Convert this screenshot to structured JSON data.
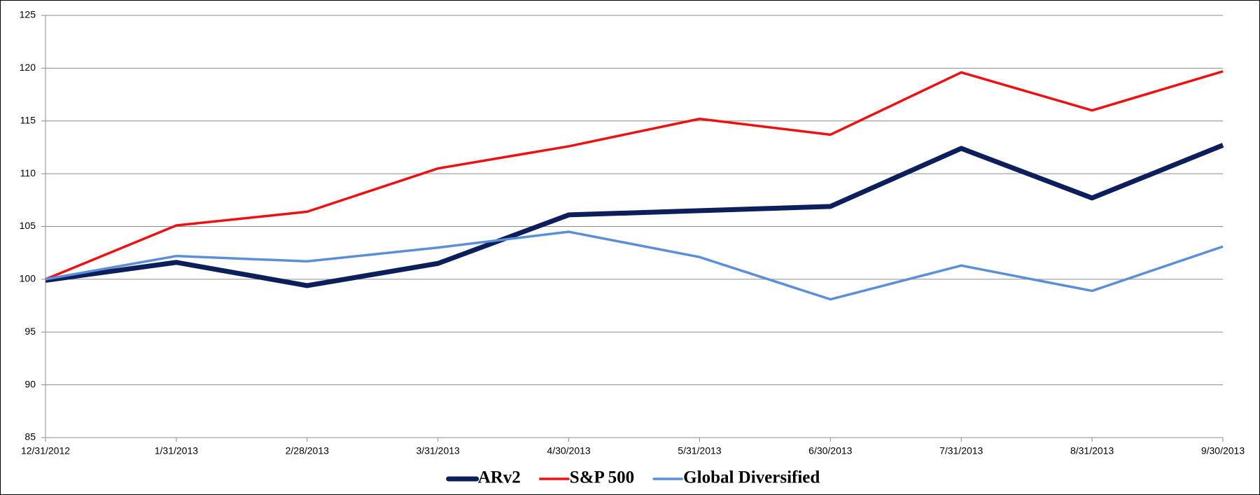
{
  "chart_data": {
    "type": "line",
    "categories": [
      "12/31/2012",
      "1/31/2013",
      "2/28/2013",
      "3/31/2013",
      "4/30/2013",
      "5/31/2013",
      "6/30/2013",
      "7/31/2013",
      "8/31/2013",
      "9/30/2013"
    ],
    "series": [
      {
        "name": "ARv2",
        "color": "#0c1f5c",
        "width": 7,
        "values": [
          99.9,
          101.6,
          99.4,
          101.5,
          106.1,
          106.5,
          106.9,
          112.4,
          107.7,
          112.7
        ]
      },
      {
        "name": "S&P 500",
        "color": "#ee1111",
        "width": 3.5,
        "values": [
          100,
          105.1,
          106.4,
          110.5,
          112.6,
          115.2,
          113.7,
          119.6,
          116.0,
          119.7
        ]
      },
      {
        "name": "Global Diversified",
        "color": "#5b8fd6",
        "width": 3.5,
        "values": [
          100,
          102.2,
          101.7,
          103.0,
          104.5,
          102.1,
          98.1,
          101.3,
          98.9,
          103.1
        ]
      }
    ],
    "ylim": [
      85,
      125
    ],
    "yticks": [
      85,
      90,
      95,
      100,
      105,
      110,
      115,
      120,
      125
    ],
    "grid": true,
    "legend": "bottom"
  }
}
